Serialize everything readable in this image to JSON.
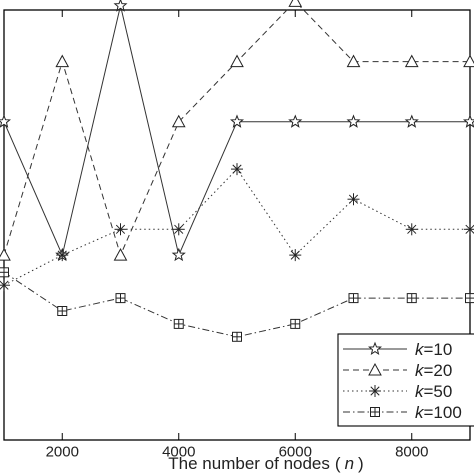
{
  "chart_data": {
    "type": "line",
    "title": "",
    "xlabel": "The number of nodes",
    "xlabel_var": "n",
    "ylabel": "",
    "xticks": [
      2000,
      4000,
      6000,
      8000
    ],
    "xlim": [
      1000,
      9000
    ],
    "ylim": [
      0,
      100
    ],
    "grid": false,
    "legend_position": "bottom-right",
    "series": [
      {
        "name": "k=10",
        "marker": "star",
        "dash": "solid",
        "x": [
          1000,
          2000,
          3000,
          4000,
          5000,
          6000,
          7000,
          8000,
          9000
        ],
        "y": [
          74,
          43,
          101,
          43,
          74,
          74,
          74,
          74,
          74
        ]
      },
      {
        "name": "k=20",
        "marker": "triangle",
        "dash": "dashed",
        "x": [
          1000,
          2000,
          3000,
          4000,
          5000,
          6000,
          7000,
          8000,
          9000
        ],
        "y": [
          43,
          88,
          43,
          74,
          88,
          102,
          88,
          88,
          88
        ]
      },
      {
        "name": "k=50",
        "marker": "asterisk",
        "dash": "dotted",
        "x": [
          1000,
          2000,
          3000,
          4000,
          5000,
          6000,
          7000,
          8000,
          9000
        ],
        "y": [
          36,
          43,
          49,
          49,
          63,
          43,
          56,
          49,
          49
        ]
      },
      {
        "name": "k=100",
        "marker": "boxplus",
        "dash": "dashdot",
        "x": [
          1000,
          2000,
          3000,
          4000,
          5000,
          6000,
          7000,
          8000,
          9000
        ],
        "y": [
          39,
          30,
          33,
          27,
          24,
          27,
          33,
          33,
          33
        ]
      }
    ]
  }
}
